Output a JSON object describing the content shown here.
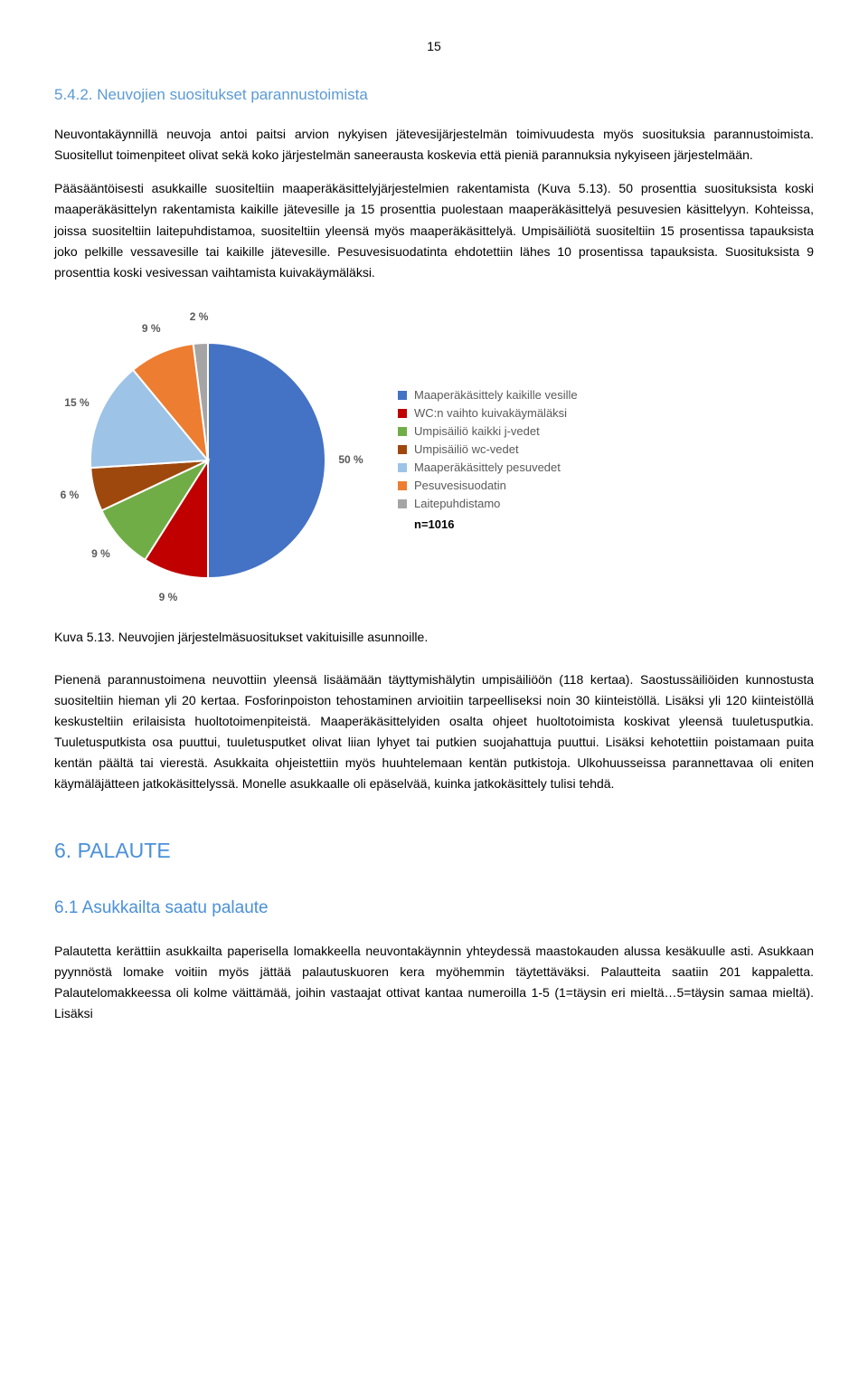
{
  "page_number": "15",
  "section_542": {
    "heading": "5.4.2. Neuvojien suositukset parannustoimista",
    "para1": "Neuvontakäynnillä neuvoja antoi paitsi arvion nykyisen jätevesijärjestelmän toimivuudesta myös suosituksia parannustoimista. Suositellut toimenpiteet olivat sekä koko järjestelmän saneerausta koskevia että pieniä parannuksia nykyiseen järjestelmään.",
    "para2": "Pääsääntöisesti asukkaille suositeltiin maaperäkäsittelyjärjestelmien rakentamista (Kuva 5.13). 50 prosenttia suosituksista koski maaperäkäsittelyn rakentamista kaikille jätevesille ja 15 prosenttia puolestaan maaperäkäsittelyä pesuvesien käsittelyyn. Kohteissa, joissa suositeltiin laitepuhdistamoa, suositeltiin yleensä myös maaperäkäsittelyä. Umpisäiliötä suositeltiin 15 prosentissa tapauksista joko pelkille vessavesille tai kaikille jätevesille. Pesuvesisuodatinta ehdotettiin lähes 10 prosentissa tapauksista. Suosituksista 9 prosenttia koski vesivessan vaihtamista kuivakäymäläksi."
  },
  "chart": {
    "type": "pie",
    "title": "",
    "total_label": "n=1016",
    "background_color": "#ffffff",
    "label_color": "#595959",
    "label_fontsize": 12,
    "slices": [
      {
        "label": "Maaperäkäsittely kaikille vesille",
        "value": 50,
        "color": "#4472c4",
        "pct": "50 %"
      },
      {
        "label": "WC:n vaihto kuivakäymäläksi",
        "value": 9,
        "color": "#c00000",
        "pct": "9 %"
      },
      {
        "label": "Umpisäiliö kaikki j-vedet",
        "value": 9,
        "color": "#70ad47",
        "pct": "9 %"
      },
      {
        "label": "Umpisäiliö wc-vedet",
        "value": 6,
        "color": "#9e480e",
        "pct": "6 %"
      },
      {
        "label": "Maaperäkäsittely pesuvedet",
        "value": 15,
        "color": "#9dc3e6",
        "pct": "15 %"
      },
      {
        "label": "Pesuvesisuodatin",
        "value": 9,
        "color": "#ed7d31",
        "pct": "9 %"
      },
      {
        "label": "Laitepuhdistamo",
        "value": 2,
        "color": "#a5a5a5",
        "pct": "2 %"
      }
    ],
    "stroke_color": "#ffffff",
    "stroke_width": 2,
    "radius": 130,
    "label_offset": 28
  },
  "figure_caption": "Kuva 5.13. Neuvojien järjestelmäsuositukset vakituisille asunnoille.",
  "para_after_chart": "Pienenä parannustoimena neuvottiin yleensä lisäämään täyttymishälytin umpisäiliöön (118 kertaa). Saostussäiliöiden kunnostusta suositeltiin hieman yli 20 kertaa. Fosforinpoiston tehostaminen arvioitiin tarpeelliseksi noin 30 kiinteistöllä. Lisäksi yli 120 kiinteistöllä keskusteltiin erilaisista huoltotoimenpiteistä. Maaperäkäsittelyiden osalta ohjeet huoltotoimista koskivat yleensä tuuletusputkia. Tuuletusputkista osa puuttui, tuuletusputket olivat liian lyhyet tai putkien suojahattuja puuttui. Lisäksi kehotettiin poistamaan puita kentän päältä tai vierestä. Asukkaita ohjeistettiin myös huuhtelemaan kentän putkistoja. Ulkohuusseissa parannettavaa oli eniten käymäläjätteen jatkokäsittelyssä. Monelle asukkaalle oli epäselvää, kuinka jatkokäsittely tulisi tehdä.",
  "section_6": {
    "heading": "6. PALAUTE",
    "sub_heading": "6.1 Asukkailta saatu palaute",
    "para": "Palautetta kerättiin asukkailta paperisella lomakkeella neuvontakäynnin yhteydessä maastokauden alussa kesäkuulle asti. Asukkaan pyynnöstä lomake voitiin myös jättää palautuskuoren kera myöhemmin täytettäväksi. Palautteita saatiin 201 kappaletta. Palautelomakkeessa oli kolme väittämää, joihin vastaajat ottivat kantaa numeroilla 1-5 (1=täysin eri mieltä…5=täysin samaa mieltä). Lisäksi"
  }
}
